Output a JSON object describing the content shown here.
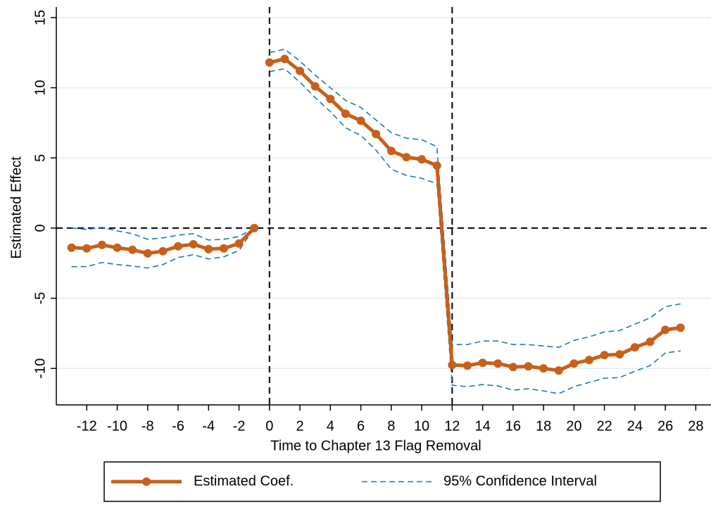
{
  "chart_data": {
    "type": "line",
    "xlabel": "Time to Chapter 13 Flag Removal",
    "ylabel": "Estimated Effect",
    "x": [
      -13,
      -12,
      -11,
      -10,
      -9,
      -8,
      -7,
      -6,
      -5,
      -4,
      -3,
      -2,
      -1,
      0,
      1,
      2,
      3,
      4,
      5,
      6,
      7,
      8,
      9,
      10,
      11,
      12,
      13,
      14,
      15,
      16,
      17,
      18,
      19,
      20,
      21,
      22,
      23,
      24,
      25,
      26,
      27
    ],
    "gap_after": -1,
    "series": [
      {
        "name": "Estimated Coef.",
        "color": "#c8601a",
        "values": [
          -1.4,
          -1.45,
          -1.2,
          -1.4,
          -1.55,
          -1.8,
          -1.65,
          -1.3,
          -1.15,
          -1.5,
          -1.45,
          -1.1,
          0,
          11.8,
          12.05,
          11.2,
          10.1,
          9.2,
          8.15,
          7.65,
          6.7,
          5.5,
          5.05,
          4.9,
          4.45,
          -9.75,
          -9.8,
          -9.6,
          -9.65,
          -9.9,
          -9.85,
          -10.0,
          -10.15,
          -9.65,
          -9.4,
          -9.05,
          -9.0,
          -8.5,
          -8.1,
          -7.25,
          -7.1
        ]
      },
      {
        "name": "95% Confidence Interval",
        "color": "#1f78b4",
        "upper": [
          0.0,
          -0.1,
          0.05,
          -0.2,
          -0.4,
          -0.8,
          -0.7,
          -0.5,
          -0.4,
          -0.85,
          -0.8,
          -0.6,
          0,
          12.5,
          12.75,
          11.9,
          10.9,
          10.0,
          9.1,
          8.6,
          7.7,
          6.8,
          6.4,
          6.3,
          5.8,
          -8.3,
          -8.3,
          -8.05,
          -8.05,
          -8.3,
          -8.3,
          -8.4,
          -8.5,
          -8.0,
          -7.75,
          -7.4,
          -7.3,
          -6.85,
          -6.4,
          -5.6,
          -5.4
        ],
        "lower": [
          -2.75,
          -2.75,
          -2.45,
          -2.6,
          -2.7,
          -2.85,
          -2.6,
          -2.1,
          -1.9,
          -2.2,
          -2.05,
          -1.6,
          0,
          11.15,
          11.35,
          10.4,
          9.3,
          8.3,
          7.15,
          6.6,
          5.55,
          4.2,
          3.75,
          3.55,
          3.15,
          -11.2,
          -11.3,
          -11.15,
          -11.25,
          -11.55,
          -11.45,
          -11.6,
          -11.8,
          -11.3,
          -11.0,
          -10.7,
          -10.65,
          -10.2,
          -9.8,
          -8.9,
          -8.75
        ]
      }
    ],
    "xlim": [
      -14,
      29
    ],
    "ylim": [
      -12.6,
      15.5
    ],
    "xticks": [
      -12,
      -10,
      -8,
      -6,
      -4,
      -2,
      0,
      2,
      4,
      6,
      8,
      10,
      12,
      14,
      16,
      18,
      20,
      22,
      24,
      26,
      28
    ],
    "yticks": [
      -10,
      -5,
      0,
      5,
      10,
      15
    ],
    "grid": true,
    "xlines": [
      0,
      12
    ],
    "ylines": [
      0
    ],
    "legend": "bottom"
  }
}
